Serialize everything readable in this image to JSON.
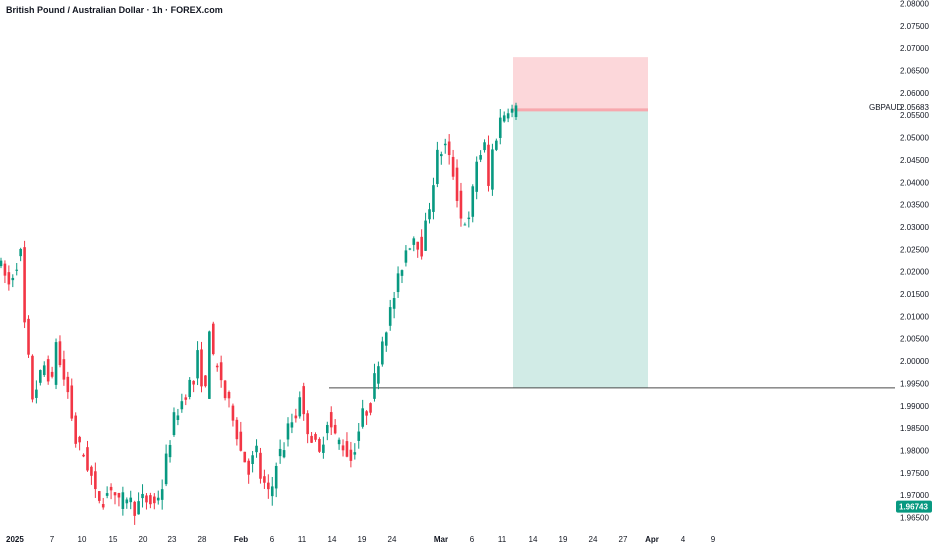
{
  "header": {
    "title": "British Pound / Australian Dollar · 1h · FOREX.com"
  },
  "chart_data": {
    "type": "candlestick",
    "symbol": "GBPAUD",
    "ylim": [
      1.965,
      2.08
    ],
    "y_ticks": [
      "2.08000",
      "2.07500",
      "2.07000",
      "2.06500",
      "2.06000",
      "2.05500",
      "2.05000",
      "2.04500",
      "2.04000",
      "2.03500",
      "2.03000",
      "2.02500",
      "2.02000",
      "2.01500",
      "2.01000",
      "2.00500",
      "2.00000",
      "1.99500",
      "1.99000",
      "1.98500",
      "1.98000",
      "1.97500",
      "1.97000",
      "1.96500"
    ],
    "x_ticks": [
      {
        "label": "2025",
        "bold": true
      },
      {
        "label": "7"
      },
      {
        "label": "10"
      },
      {
        "label": "15"
      },
      {
        "label": "20"
      },
      {
        "label": "23"
      },
      {
        "label": "28"
      },
      {
        "label": "Feb",
        "bold": true
      },
      {
        "label": "6"
      },
      {
        "label": "11"
      },
      {
        "label": "14"
      },
      {
        "label": "19"
      },
      {
        "label": "24"
      },
      {
        "label": "Mar",
        "bold": true
      },
      {
        "label": "6"
      },
      {
        "label": "11"
      },
      {
        "label": "14"
      },
      {
        "label": "19"
      },
      {
        "label": "24"
      },
      {
        "label": "27"
      },
      {
        "label": "Apr",
        "bold": true
      },
      {
        "label": "4"
      },
      {
        "label": "9"
      }
    ],
    "price_path": [
      [
        0,
        2.023
      ],
      [
        3,
        2.017
      ],
      [
        5,
        2.022
      ],
      [
        6,
        2.024
      ],
      [
        7,
        2.008
      ],
      [
        9,
        1.992
      ],
      [
        12,
        1.999
      ],
      [
        14,
        1.995
      ],
      [
        15,
        2.005
      ],
      [
        16,
        1.999
      ],
      [
        18,
        1.993
      ],
      [
        20,
        1.982
      ],
      [
        22,
        1.979
      ],
      [
        24,
        1.974
      ],
      [
        25,
        1.97
      ],
      [
        27,
        1.969
      ],
      [
        29,
        1.972
      ],
      [
        31,
        1.968
      ],
      [
        33,
        1.97
      ],
      [
        35,
        1.967
      ],
      [
        37,
        1.969
      ],
      [
        40,
        1.968
      ],
      [
        42,
        1.972
      ],
      [
        43,
        1.978
      ],
      [
        45,
        1.987
      ],
      [
        47,
        1.991
      ],
      [
        49,
        1.995
      ],
      [
        50,
        1.995
      ],
      [
        51,
        2.001
      ],
      [
        52,
        1.996
      ],
      [
        53,
        1.993
      ],
      [
        54,
        2.008
      ],
      [
        55,
        2.0
      ],
      [
        57,
        1.996
      ],
      [
        58,
        1.992
      ],
      [
        60,
        1.988
      ],
      [
        62,
        1.98
      ],
      [
        64,
        1.976
      ],
      [
        66,
        1.98
      ],
      [
        67,
        1.974
      ],
      [
        69,
        1.97
      ],
      [
        70,
        1.972
      ],
      [
        71,
        1.978
      ],
      [
        73,
        1.981
      ],
      [
        74,
        1.985
      ],
      [
        76,
        1.988
      ],
      [
        77,
        1.993
      ],
      [
        78,
        1.987
      ],
      [
        80,
        1.983
      ],
      [
        82,
        1.979
      ],
      [
        84,
        1.987
      ],
      [
        86,
        1.983
      ],
      [
        88,
        1.981
      ],
      [
        90,
        1.978
      ],
      [
        91,
        1.981
      ],
      [
        93,
        1.988
      ],
      [
        95,
        1.99
      ],
      [
        96,
        1.996
      ],
      [
        98,
        2.005
      ],
      [
        100,
        2.011
      ],
      [
        102,
        2.018
      ],
      [
        104,
        2.025
      ],
      [
        106,
        2.028
      ],
      [
        108,
        2.025
      ],
      [
        110,
        2.035
      ],
      [
        112,
        2.046
      ],
      [
        114,
        2.048
      ],
      [
        116,
        2.042
      ],
      [
        118,
        2.032
      ],
      [
        120,
        2.031
      ],
      [
        122,
        2.045
      ],
      [
        124,
        2.048
      ],
      [
        125,
        2.039
      ],
      [
        126,
        2.047
      ],
      [
        128,
        2.054
      ],
      [
        130,
        2.057
      ],
      [
        131,
        2.056
      ]
    ],
    "position": {
      "take_profit_price": 1.994,
      "stop_loss_price": 2.068,
      "entry_price": 2.0562,
      "horizontal_line_price": 1.994
    },
    "last_price": {
      "label": "GBPAUD",
      "value": "2.05683"
    },
    "bottom_price": {
      "value": "1.96743",
      "color": "#089981"
    },
    "colors": {
      "up": "#089981",
      "down": "#f23645",
      "profit_zone": "#d1ebe6",
      "loss_zone": "#fcd7da",
      "entry_line": "#f7a8ae"
    }
  }
}
